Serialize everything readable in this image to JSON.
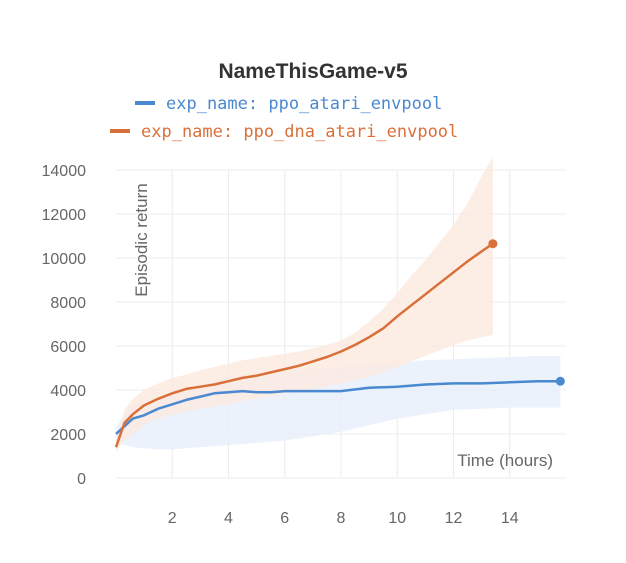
{
  "chart_data": {
    "type": "line",
    "title": "NameThisGame-v5",
    "xlabel": "Time (hours)",
    "ylabel": "Episodic return",
    "xlim": [
      0,
      16
    ],
    "ylim": [
      0,
      14000
    ],
    "x_ticks": [
      2,
      4,
      6,
      8,
      10,
      12,
      14
    ],
    "y_ticks": [
      0,
      2000,
      4000,
      6000,
      8000,
      10000,
      12000,
      14000
    ],
    "grid": true,
    "legend": "top-center",
    "series": [
      {
        "name": "exp_name: ppo_atari_envpool",
        "color": "#4a88d0",
        "band_color": "#e8f0fb",
        "x": [
          0,
          0.3,
          0.6,
          1.0,
          1.5,
          2.0,
          2.5,
          3.0,
          3.5,
          4.0,
          4.5,
          5.0,
          5.5,
          6.0,
          7.0,
          8.0,
          9.0,
          10.0,
          11.0,
          12.0,
          13.0,
          14.0,
          15.0,
          15.8
        ],
        "y": [
          2000,
          2350,
          2700,
          2850,
          3150,
          3350,
          3550,
          3700,
          3850,
          3900,
          3950,
          3900,
          3900,
          3950,
          3950,
          3950,
          4100,
          4150,
          4250,
          4300,
          4300,
          4350,
          4400,
          4400
        ],
        "lower": [
          1700,
          1500,
          1400,
          1350,
          1300,
          1300,
          1350,
          1400,
          1450,
          1500,
          1550,
          1600,
          1650,
          1700,
          1900,
          2100,
          2400,
          2700,
          2900,
          3100,
          3150,
          3200,
          3200,
          3200
        ],
        "upper": [
          2300,
          2900,
          3300,
          3500,
          3700,
          3900,
          4000,
          4200,
          4400,
          4600,
          4700,
          4750,
          4800,
          4850,
          4950,
          5050,
          5150,
          5250,
          5350,
          5400,
          5450,
          5500,
          5550,
          5550
        ]
      },
      {
        "name": "exp_name: ppo_dna_atari_envpool",
        "color": "#d9703a",
        "band_color": "#fbeae0",
        "x": [
          0,
          0.3,
          0.6,
          1.0,
          1.5,
          2.0,
          2.5,
          3.0,
          3.5,
          4.0,
          4.5,
          5.0,
          5.5,
          6.0,
          6.5,
          7.0,
          7.5,
          8.0,
          8.5,
          9.0,
          9.5,
          10.0,
          10.5,
          11.0,
          11.5,
          12.0,
          12.5,
          13.0,
          13.4
        ],
        "y": [
          1400,
          2500,
          2900,
          3300,
          3600,
          3850,
          4050,
          4150,
          4250,
          4400,
          4550,
          4650,
          4800,
          4950,
          5100,
          5300,
          5500,
          5750,
          6050,
          6400,
          6800,
          7350,
          7850,
          8350,
          8850,
          9350,
          9850,
          10300,
          10650
        ],
        "lower": [
          1200,
          1700,
          2000,
          2400,
          2700,
          2900,
          3000,
          3150,
          3250,
          3350,
          3500,
          3600,
          3700,
          3850,
          3950,
          4050,
          4150,
          4300,
          4450,
          4600,
          4800,
          5050,
          5300,
          5550,
          5800,
          6050,
          6250,
          6400,
          6500
        ],
        "upper": [
          1700,
          3100,
          3600,
          4000,
          4300,
          4550,
          4700,
          4900,
          5050,
          5200,
          5350,
          5450,
          5550,
          5650,
          5750,
          5900,
          6050,
          6250,
          6600,
          7100,
          7700,
          8400,
          9200,
          9900,
          10700,
          11500,
          12500,
          13700,
          14600
        ]
      }
    ]
  }
}
